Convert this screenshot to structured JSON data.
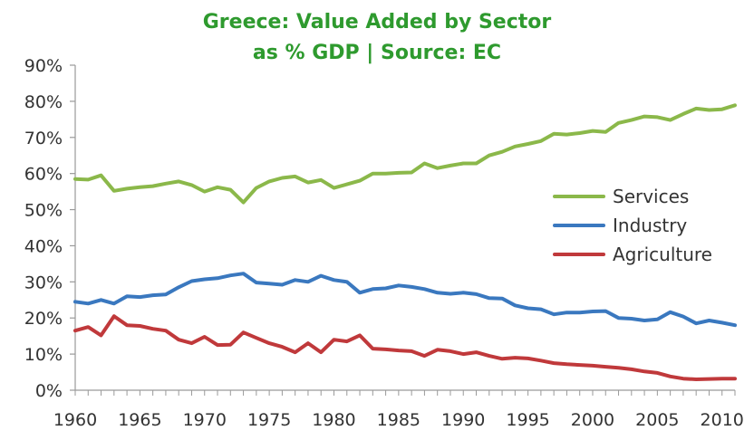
{
  "chart_data": {
    "type": "line",
    "title_lines": [
      "Greece: Value Added by Sector",
      "as % GDP | Source: EC"
    ],
    "title_color": "#2e9a2e",
    "xlabel": "",
    "ylabel": "",
    "x": [
      1960,
      1961,
      1962,
      1963,
      1964,
      1965,
      1966,
      1967,
      1968,
      1969,
      1970,
      1971,
      1972,
      1973,
      1974,
      1975,
      1976,
      1977,
      1978,
      1979,
      1980,
      1981,
      1982,
      1983,
      1984,
      1985,
      1986,
      1987,
      1988,
      1989,
      1990,
      1991,
      1992,
      1993,
      1994,
      1995,
      1996,
      1997,
      1998,
      1999,
      2000,
      2001,
      2002,
      2003,
      2004,
      2005,
      2006,
      2007,
      2008,
      2009,
      2010,
      2011
    ],
    "xlim": [
      1960,
      2011
    ],
    "x_ticks": [
      1960,
      1965,
      1970,
      1975,
      1980,
      1985,
      1990,
      1995,
      2000,
      2005,
      2010
    ],
    "ylim": [
      0,
      90
    ],
    "y_ticks": [
      0,
      10,
      20,
      30,
      40,
      50,
      60,
      70,
      80,
      90
    ],
    "y_tick_labels": [
      "0%",
      "10%",
      "20%",
      "30%",
      "40%",
      "50%",
      "60%",
      "70%",
      "80%",
      "90%"
    ],
    "grid": false,
    "legend_position": "right",
    "series": [
      {
        "name": "Services",
        "color": "#8bb84a",
        "values": [
          58.5,
          58.3,
          59.5,
          55.2,
          55.8,
          56.2,
          56.5,
          57.2,
          57.8,
          56.8,
          55.0,
          56.2,
          55.5,
          52.0,
          56.0,
          57.8,
          58.8,
          59.2,
          57.5,
          58.2,
          56.0,
          57.0,
          58.0,
          60.0,
          60.0,
          60.2,
          60.3,
          62.8,
          61.5,
          62.2,
          62.8,
          62.8,
          65.0,
          66.0,
          67.5,
          68.2,
          69.0,
          71.0,
          70.8,
          71.2,
          71.8,
          71.5,
          74.0,
          74.8,
          75.8,
          75.6,
          74.8,
          76.5,
          78.0,
          77.6,
          77.8,
          78.9
        ]
      },
      {
        "name": "Industry",
        "color": "#3a78bf",
        "values": [
          24.5,
          24.0,
          25.0,
          24.0,
          26.0,
          25.8,
          26.3,
          26.5,
          28.5,
          30.2,
          30.7,
          31.0,
          31.8,
          32.3,
          29.8,
          29.5,
          29.2,
          30.5,
          30.0,
          31.7,
          30.5,
          30.0,
          27.0,
          28.0,
          28.2,
          29.0,
          28.6,
          28.0,
          27.0,
          26.7,
          27.0,
          26.6,
          25.5,
          25.4,
          23.5,
          22.7,
          22.4,
          21.0,
          21.5,
          21.5,
          21.8,
          21.9,
          20.0,
          19.8,
          19.3,
          19.6,
          21.6,
          20.4,
          18.5,
          19.3,
          18.7,
          18.0
        ]
      },
      {
        "name": "Agriculture",
        "color": "#c0393b",
        "values": [
          16.5,
          17.5,
          15.2,
          20.5,
          18.0,
          17.8,
          17.0,
          16.5,
          14.0,
          13.0,
          14.8,
          12.5,
          12.6,
          16.0,
          14.5,
          13.0,
          12.0,
          10.5,
          13.0,
          10.5,
          14.0,
          13.5,
          15.2,
          11.5,
          11.3,
          11.0,
          10.8,
          9.5,
          11.2,
          10.8,
          10.0,
          10.5,
          9.5,
          8.7,
          9.0,
          8.8,
          8.2,
          7.5,
          7.2,
          7.0,
          6.8,
          6.5,
          6.2,
          5.8,
          5.2,
          4.8,
          3.8,
          3.2,
          3.0,
          3.1,
          3.2,
          3.2
        ]
      }
    ]
  }
}
